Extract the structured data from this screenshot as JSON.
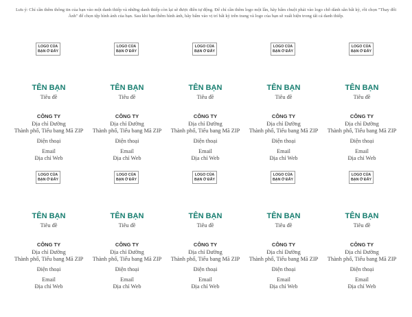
{
  "note": "Lưu ý: Chỉ cần thêm thông tin của bạn vào một danh thiếp và những danh thiếp còn lại sẽ được điền tự động. Để chỉ cần thêm logo một lần, hãy bấm chuột phải vào logo chỗ dành sẵn bất kỳ, rồi chọn \"Thay đổi Ảnh\" để chọn tệp hình ảnh của bạn. Sau khi bạn thêm hình ảnh, hãy bấm vào vị trí bất kỳ trên trang và logo của bạn sẽ xuất hiện trong tất cả danh thiếp.",
  "card": {
    "logo": "LOGO CỦA BẠN Ở ĐÂY",
    "name": "TÊN BẠN",
    "title": "Tiêu đề",
    "company": "CÔNG TY",
    "address": "Địa chỉ Đường",
    "city": "Thành phố, Tiểu bang Mã ZIP",
    "phone": "Điện thoại",
    "email": "Email",
    "web": "Địa chỉ Web"
  },
  "colors": {
    "name": "#167d6f"
  }
}
